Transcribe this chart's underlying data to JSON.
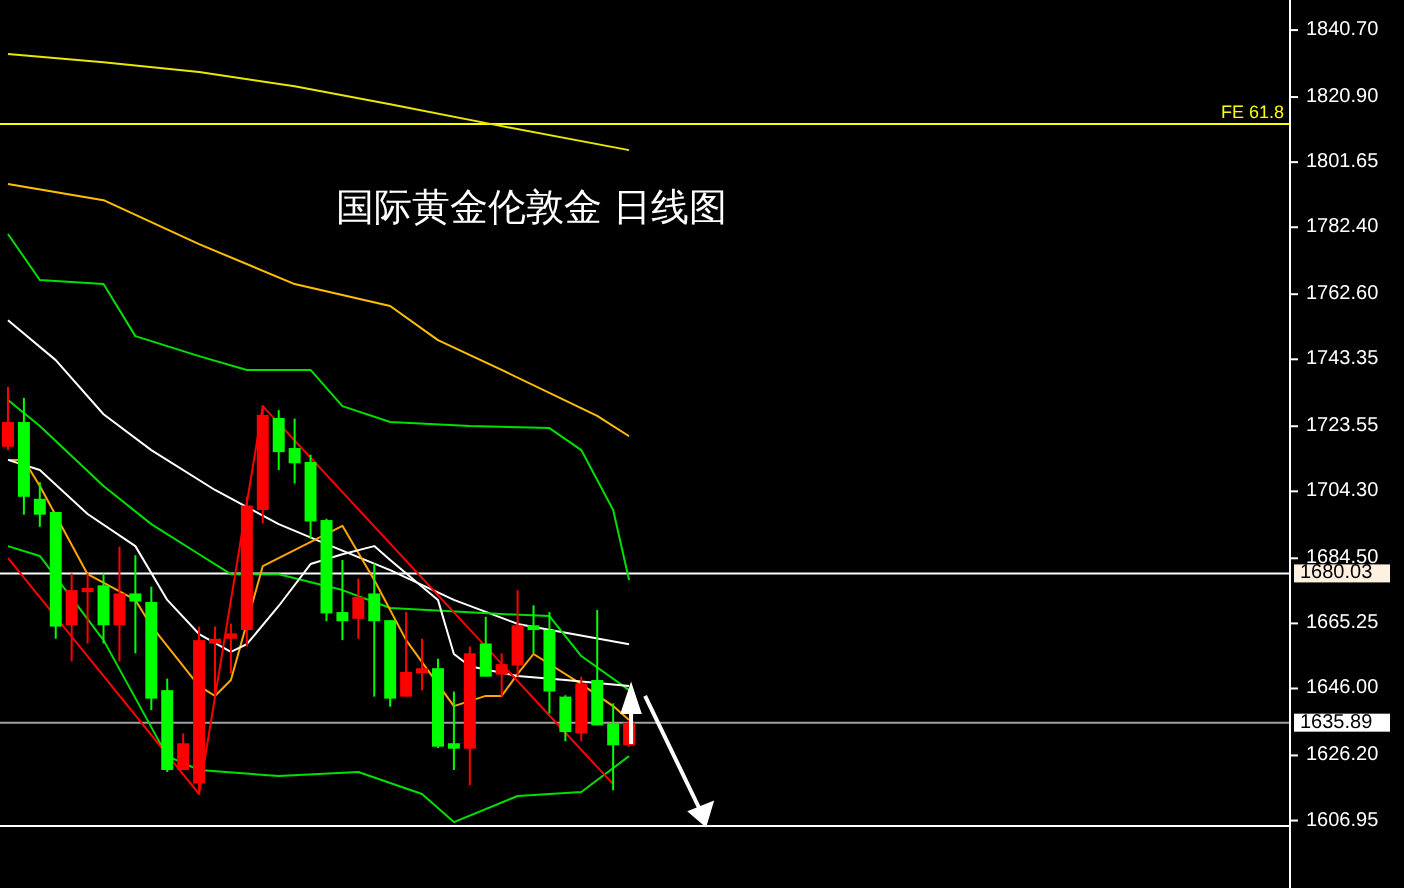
{
  "chart_data": {
    "type": "candlestick",
    "title": "国际黄金伦敦金 日线图",
    "categories": [
      null,
      null,
      null,
      null,
      null,
      null,
      null,
      null,
      null,
      null,
      null,
      null,
      null,
      null,
      null,
      null,
      null,
      null,
      null,
      null,
      null,
      null,
      null,
      null,
      null,
      null,
      null,
      null,
      null,
      null,
      null,
      null,
      null,
      null,
      null,
      null,
      null,
      null,
      null,
      null,
      null,
      null,
      null,
      null,
      null,
      null,
      null,
      null,
      null,
      null,
      null,
      null,
      null,
      null,
      null,
      null,
      null,
      null,
      null,
      null,
      null,
      null,
      null,
      null,
      null,
      null,
      null,
      null,
      null,
      null,
      null,
      null,
      null,
      null,
      null,
      null,
      null,
      null,
      null,
      null,
      null
    ],
    "ohlc": [
      [
        1717.5,
        1735.2,
        1716.5,
        1724.8
      ],
      [
        1724.8,
        1731.9,
        1697.4,
        1702.7
      ],
      [
        1702.1,
        1707.0,
        1693.8,
        1697.4
      ],
      [
        1698.2,
        1698.2,
        1660.7,
        1664.3
      ],
      [
        1664.7,
        1680.0,
        1654.0,
        1675.1
      ],
      [
        1674.5,
        1680.0,
        1659.3,
        1675.7
      ],
      [
        1676.5,
        1680.0,
        1659.3,
        1664.7
      ],
      [
        1664.7,
        1687.9,
        1654.0,
        1674.1
      ],
      [
        1674.1,
        1685.4,
        1656.4,
        1671.7
      ],
      [
        1671.6,
        1676.1,
        1639.6,
        1643.0
      ],
      [
        1645.5,
        1648.9,
        1621.3,
        1621.9
      ],
      [
        1621.9,
        1632.7,
        1621.9,
        1629.8
      ],
      [
        1617.9,
        1664.3,
        1615.4,
        1660.3
      ],
      [
        1659.3,
        1664.3,
        1644.6,
        1660.7
      ],
      [
        1660.7,
        1665.2,
        1650.5,
        1662.3
      ],
      [
        1663.3,
        1702.7,
        1658.4,
        1700.1
      ],
      [
        1698.8,
        1729.7,
        1694.8,
        1726.9
      ],
      [
        1726.0,
        1728.3,
        1710.6,
        1715.9
      ],
      [
        1717.1,
        1725.8,
        1706.6,
        1712.6
      ],
      [
        1713.0,
        1715.1,
        1690.3,
        1695.4
      ],
      [
        1695.8,
        1696.2,
        1665.9,
        1668.2
      ],
      [
        1668.6,
        1684.0,
        1660.3,
        1665.9
      ],
      [
        1666.6,
        1678.5,
        1660.7,
        1673.1
      ],
      [
        1674.1,
        1683.0,
        1643.6,
        1665.9
      ],
      [
        1666.2,
        1666.2,
        1640.6,
        1643.0
      ],
      [
        1643.6,
        1668.6,
        1643.6,
        1650.9
      ],
      [
        1650.5,
        1660.7,
        1645.5,
        1652.0
      ],
      [
        1652.0,
        1654.8,
        1628.4,
        1628.8
      ],
      [
        1629.8,
        1645.1,
        1621.9,
        1628.2
      ],
      [
        1628.2,
        1658.4,
        1617.4,
        1656.4
      ],
      [
        1659.3,
        1667.2,
        1649.5,
        1649.5
      ],
      [
        1650.1,
        1656.4,
        1643.6,
        1653.2
      ],
      [
        1652.8,
        1675.1,
        1649.5,
        1664.7
      ],
      [
        1664.7,
        1670.6,
        1656.4,
        1663.3
      ],
      [
        1663.3,
        1668.6,
        1638.6,
        1645.1
      ],
      [
        1643.6,
        1644.0,
        1630.4,
        1633.1
      ],
      [
        1632.7,
        1649.5,
        1630.4,
        1647.5
      ],
      [
        1648.5,
        1669.2,
        1635.1,
        1635.1
      ],
      [
        1635.7,
        1641.6,
        1615.9,
        1629.2
      ],
      [
        1629.2,
        1636.7,
        1628.8,
        1635.89
      ],
      null,
      null,
      null,
      null,
      null,
      null,
      null,
      null,
      null,
      null,
      null,
      null,
      null,
      null,
      null,
      null,
      null,
      null,
      null,
      null,
      null,
      null,
      null,
      null,
      null,
      null,
      null,
      null,
      null,
      null,
      null,
      null,
      null,
      null,
      null,
      null,
      null,
      null,
      null,
      null,
      null
    ],
    "colors": [
      "#ff0000",
      "#00ff00",
      "#00ff00",
      "#00ff00",
      "#ff0000",
      "#ff0000",
      "#00ff00",
      "#ff0000",
      "#00ff00",
      "#00ff00",
      "#00ff00",
      "#ff0000",
      "#ff0000",
      "#ff0000",
      "#ff0000",
      "#ff0000",
      "#ff0000",
      "#00ff00",
      "#00ff00",
      "#00ff00",
      "#00ff00",
      "#00ff00",
      "#ff0000",
      "#00ff00",
      "#00ff00",
      "#ff0000",
      "#ff0000",
      "#00ff00",
      "#00ff00",
      "#ff0000",
      "#00ff00",
      "#ff0000",
      "#ff0000",
      "#00ff00",
      "#00ff00",
      "#00ff00",
      "#ff0000",
      "#00ff00",
      "#00ff00",
      "#ff0000",
      null,
      null,
      null,
      null,
      null,
      null,
      null,
      null,
      null,
      null,
      null,
      null,
      null,
      null,
      null,
      null,
      null,
      null,
      null,
      null,
      null,
      null,
      null,
      null,
      null,
      null,
      null,
      null,
      null,
      null,
      null,
      null,
      null,
      null,
      null,
      null,
      null,
      null,
      null,
      null,
      null
    ],
    "series": [
      {
        "type": "line",
        "color": "#e8e800",
        "values": [
          1833.6,
          null,
          null,
          null,
          null,
          null,
          1831.2,
          null,
          null,
          null,
          null,
          null,
          1828.3,
          null,
          null,
          null,
          null,
          null,
          1824.1,
          null,
          null,
          null,
          null,
          null,
          1818.8,
          null,
          null,
          null,
          null,
          null,
          null,
          1812.3,
          null,
          null,
          null,
          null,
          null,
          null,
          null,
          1805.2,
          null,
          null,
          null,
          null,
          null,
          null,
          null,
          null,
          null,
          null,
          null,
          null,
          null,
          null,
          null,
          null,
          null,
          null,
          null,
          null,
          null,
          null,
          null,
          null,
          null,
          null,
          null,
          null,
          null,
          null,
          null,
          null,
          null,
          null,
          null,
          null,
          null,
          null,
          null,
          null,
          null
        ]
      },
      {
        "type": "line",
        "color": "#ffc000",
        "values": [
          1795.2,
          null,
          null,
          null,
          null,
          null,
          1790.4,
          null,
          null,
          null,
          null,
          null,
          1777.4,
          null,
          null,
          null,
          null,
          null,
          1765.6,
          null,
          null,
          null,
          null,
          null,
          1759.1,
          null,
          null,
          1749.0,
          null,
          null,
          null,
          1740.2,
          null,
          null,
          null,
          null,
          null,
          1726.6,
          null,
          1720.6,
          null,
          null,
          null,
          null,
          null,
          null,
          null,
          null,
          null,
          null,
          null,
          null,
          null,
          null,
          null,
          null,
          null,
          null,
          null,
          null,
          null,
          null,
          null,
          null,
          null,
          null,
          null,
          null,
          null,
          null,
          null,
          null,
          null,
          null,
          null,
          null,
          null,
          null,
          null,
          null,
          null
        ]
      },
      {
        "type": "line",
        "color": "#00e000",
        "values": [
          1780.4,
          null,
          1766.8,
          null,
          null,
          null,
          1765.6,
          null,
          1750.2,
          null,
          null,
          null,
          1744.3,
          null,
          null,
          1740.2,
          null,
          null,
          null,
          1740.2,
          null,
          1729.5,
          null,
          null,
          1724.8,
          null,
          null,
          null,
          null,
          1723.6,
          null,
          null,
          null,
          null,
          1723.0,
          null,
          1716.5,
          null,
          1698.8,
          1678.1,
          null,
          null,
          null,
          null,
          null,
          null,
          null,
          null,
          null,
          null,
          null,
          null,
          null,
          null,
          null,
          null,
          null,
          null,
          null,
          null,
          null,
          null,
          null,
          null,
          null,
          null,
          null,
          null,
          null,
          null,
          null,
          null,
          null,
          null,
          null,
          null,
          null,
          null,
          null,
          null,
          null
        ]
      },
      {
        "type": "line",
        "color": "#ffffff",
        "values": [
          1754.9,
          null,
          null,
          1743.1,
          null,
          null,
          1727.1,
          null,
          null,
          1716.5,
          null,
          null,
          null,
          1704.7,
          null,
          null,
          null,
          1694.6,
          null,
          null,
          1688.7,
          null,
          null,
          null,
          1681.0,
          null,
          null,
          null,
          1672.2,
          null,
          null,
          null,
          1665.1,
          null,
          null,
          null,
          null,
          null,
          null,
          1659.1,
          null,
          null,
          null,
          null,
          null,
          null,
          null,
          null,
          null,
          null,
          null,
          null,
          null,
          null,
          null,
          null,
          null,
          null,
          null,
          null,
          null,
          null,
          null,
          null,
          null,
          null,
          null,
          null,
          null,
          null,
          null,
          null,
          null,
          null,
          null,
          null,
          null,
          null,
          null,
          null,
          null
        ]
      },
      {
        "type": "line",
        "color": "#00e000",
        "values": [
          1731.3,
          null,
          1723.6,
          null,
          null,
          null,
          1705.9,
          null,
          null,
          1694.6,
          null,
          null,
          1685.7,
          null,
          1679.8,
          null,
          null,
          1679.8,
          null,
          null,
          null,
          1675.1,
          null,
          null,
          1669.8,
          null,
          null,
          null,
          null,
          null,
          null,
          1668.0,
          null,
          null,
          1667.4,
          null,
          1655.6,
          null,
          null,
          1645.5,
          null,
          null,
          null,
          null,
          null,
          null,
          null,
          null,
          null,
          null,
          null,
          null,
          null,
          null,
          null,
          null,
          null,
          null,
          null,
          null,
          null,
          null,
          null,
          null,
          null,
          null,
          null,
          null,
          null,
          null,
          null,
          null,
          null,
          null,
          null,
          null,
          null,
          null,
          null,
          null,
          null
        ]
      },
      {
        "type": "line",
        "color": "#00e000",
        "values": [
          1688.1,
          null,
          1685.2,
          null,
          null,
          null,
          1660.3,
          null,
          null,
          null,
          1626.0,
          null,
          1621.9,
          null,
          null,
          null,
          null,
          1620.1,
          null,
          null,
          null,
          null,
          1621.3,
          null,
          null,
          null,
          1614.8,
          null,
          1606.5,
          null,
          null,
          null,
          1614.2,
          null,
          null,
          null,
          1615.4,
          null,
          null,
          1626.0,
          null,
          null,
          null,
          null,
          null,
          null,
          null,
          null,
          null,
          null,
          null,
          null,
          null,
          null,
          null,
          null,
          null,
          null,
          null,
          null,
          null,
          null,
          null,
          null,
          null,
          null,
          null,
          null,
          null,
          null,
          null,
          null,
          null,
          null,
          null,
          null,
          null,
          null,
          null,
          null,
          null
        ]
      },
      {
        "type": "line",
        "color": "#ffa500",
        "values": [
          1713.6,
          1713.6,
          1705.9,
          null,
          null,
          1679.8,
          null,
          null,
          1672.2,
          1664.5,
          null,
          null,
          1646.7,
          1643.8,
          1648.5,
          null,
          1682.2,
          null,
          null,
          null,
          null,
          1694.1,
          null,
          1678.1,
          null,
          1660.3,
          null,
          null,
          1640.8,
          null,
          1643.8,
          1643.8,
          1650.3,
          1656.2,
          null,
          null,
          1647.3,
          null,
          1640.8,
          1636.7,
          null,
          null,
          null,
          null,
          null,
          null,
          null,
          null,
          null,
          null,
          null,
          null,
          null,
          null,
          null,
          null,
          null,
          null,
          null,
          null,
          null,
          null,
          null,
          null,
          null,
          null,
          null,
          null,
          null,
          null,
          null,
          null,
          null,
          null,
          null,
          null,
          null,
          null,
          null,
          null,
          null
        ]
      },
      {
        "type": "line",
        "color": "#ffffff",
        "values": [
          1713.6,
          null,
          1710.6,
          null,
          null,
          1697.6,
          null,
          null,
          1688.1,
          null,
          1672.2,
          null,
          1662.1,
          null,
          1656.8,
          1659.1,
          null,
          1670.4,
          null,
          1682.8,
          null,
          1685.7,
          null,
          1688.1,
          1684.0,
          null,
          null,
          1672.2,
          1656.2,
          1652.6,
          null,
          null,
          1649.7,
          null,
          null,
          1648.5,
          null,
          null,
          null,
          1646.7,
          null,
          null,
          null,
          null,
          null,
          null,
          null,
          null,
          null,
          null,
          null,
          null,
          null,
          null,
          null,
          null,
          null,
          null,
          null,
          null,
          null,
          null,
          null,
          null,
          null,
          null,
          null,
          null,
          null,
          null,
          null,
          null,
          null,
          null,
          null,
          null,
          null,
          null,
          null,
          null,
          null
        ]
      },
      {
        "type": "line",
        "color": "#ff0000",
        "values": [
          1684.6,
          null,
          null,
          null,
          null,
          null,
          null,
          null,
          null,
          null,
          null,
          null,
          1614.8,
          null,
          null,
          null,
          1729.5,
          null,
          null,
          null,
          null,
          null,
          null,
          null,
          null,
          null,
          null,
          null,
          null,
          null,
          null,
          null,
          null,
          null,
          null,
          null,
          null,
          null,
          1617.7,
          null,
          null,
          null,
          null,
          null,
          null,
          null,
          null,
          null,
          null,
          null,
          null,
          null,
          null,
          null,
          null,
          null,
          null,
          null,
          null,
          null,
          null,
          null,
          null,
          null,
          null,
          null,
          null,
          null,
          null,
          null,
          null,
          null,
          null,
          null,
          null,
          null,
          null,
          null,
          null,
          null,
          null
        ]
      }
    ],
    "ylim": [
      1587.0,
      1849.6
    ],
    "yticks": [
      {
        "value": 1840.7,
        "label": "1840.70"
      },
      {
        "value": 1820.9,
        "label": "1820.90"
      },
      {
        "value": 1801.65,
        "label": "1801.65"
      },
      {
        "value": 1782.4,
        "label": "1782.40"
      },
      {
        "value": 1762.6,
        "label": "1762.60"
      },
      {
        "value": 1743.35,
        "label": "1743.35"
      },
      {
        "value": 1723.55,
        "label": "1723.55"
      },
      {
        "value": 1704.3,
        "label": "1704.30"
      },
      {
        "value": 1684.5,
        "label": "1684.50"
      },
      {
        "value": 1665.25,
        "label": "1665.25"
      },
      {
        "value": 1646,
        "label": "1646.00"
      },
      {
        "value": 1626.2,
        "label": "1626.20"
      },
      {
        "value": 1606.95,
        "label": "1606.95"
      }
    ],
    "ref_lines": [
      {
        "axis": "y",
        "value": 1812.9,
        "label": "FE 61.8",
        "color": "#ffff00"
      },
      {
        "axis": "y",
        "value": 1680.03,
        "label": "1680.03",
        "color": "#ffffff"
      },
      {
        "axis": "y",
        "value": 1635.89,
        "label": "1635.89",
        "color": "#a0a0a0"
      },
      {
        "axis": "y",
        "value": 1605.3,
        "label": null,
        "color": "#ffffff"
      }
    ],
    "grid": false,
    "marker": "none",
    "tick_labels": "y"
  }
}
